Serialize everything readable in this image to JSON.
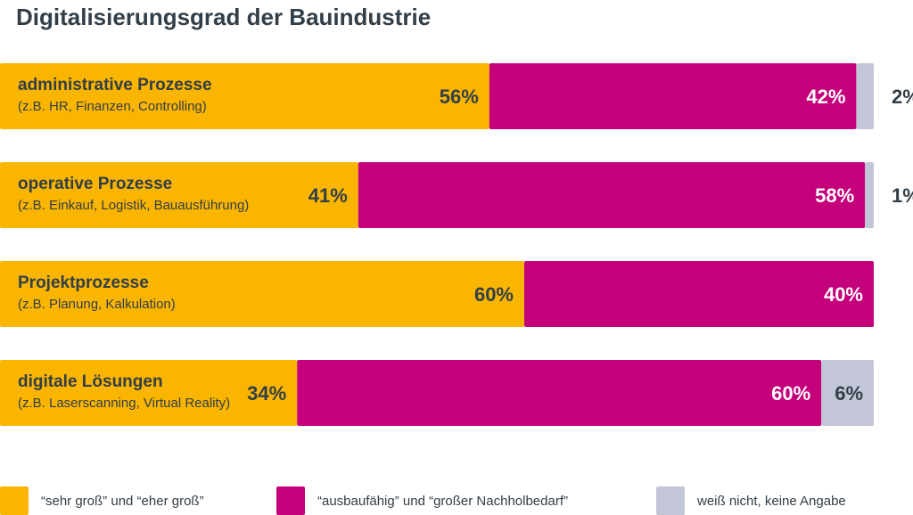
{
  "title": "Digitalisierungsgrad der Bauindustrie",
  "colors": {
    "yellow": "#f9b500",
    "magenta": "#c4007a",
    "gray": "#c2c6d6",
    "text": "#323e48"
  },
  "chart_data": {
    "type": "bar",
    "orientation": "horizontal",
    "stacked": true,
    "title": "Digitalisierungsgrad der Bauindustrie",
    "categories": [
      {
        "label": "administrative Prozesse",
        "sub": "(z.B. HR, Finanzen, Controlling)"
      },
      {
        "label": "operative Prozesse",
        "sub": "(z.B. Einkauf, Logistik, Bauausführung)"
      },
      {
        "label": "Projektprozesse",
        "sub": "(z.B. Planung, Kalkulation)"
      },
      {
        "label": "digitale Lösungen",
        "sub": "(z.B. Laserscanning, Virtual Reality)"
      }
    ],
    "series": [
      {
        "name": "“sehr groß” und “eher groß”",
        "color": "#f9b500",
        "values": [
          56,
          41,
          60,
          34
        ]
      },
      {
        "name": "“ausbaufähig” und “großer Nachholbedarf”",
        "color": "#c4007a",
        "values": [
          42,
          58,
          40,
          60
        ]
      },
      {
        "name": "weiß nicht, keine Angabe",
        "color": "#c2c6d6",
        "values": [
          2,
          1,
          0,
          6
        ]
      }
    ],
    "unit": "%",
    "xlim": [
      0,
      100
    ],
    "grid": false,
    "legend": "bottom"
  }
}
